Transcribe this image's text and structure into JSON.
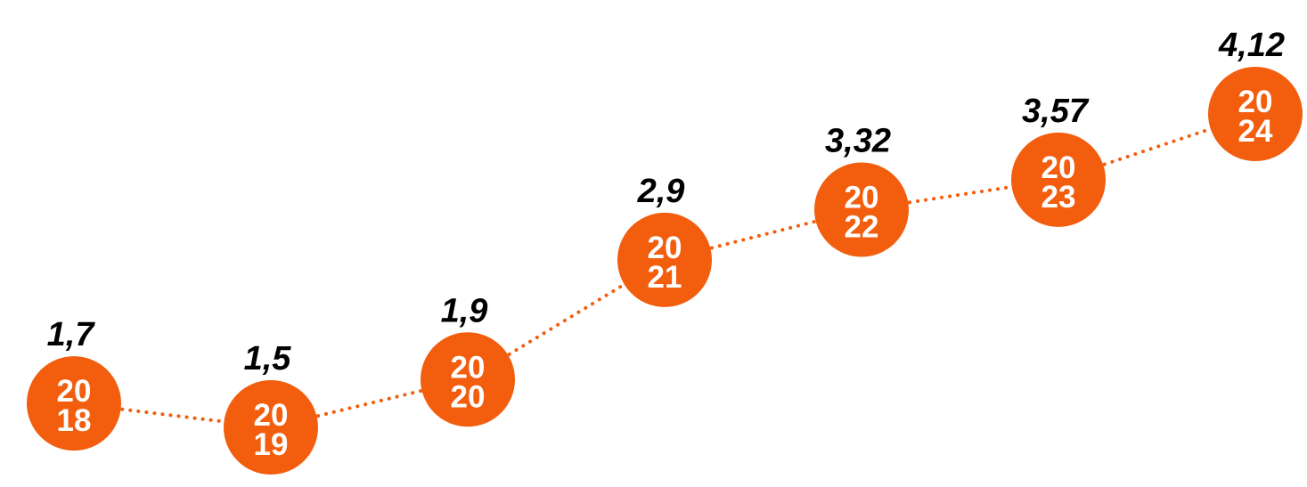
{
  "chart_data": {
    "type": "line",
    "x": [
      "2018",
      "2019",
      "2020",
      "2021",
      "2022",
      "2023",
      "2024"
    ],
    "values": [
      1.7,
      1.5,
      1.9,
      2.9,
      3.32,
      3.57,
      4.12
    ],
    "value_labels": [
      "1,7",
      "1,5",
      "1,9",
      "2,9",
      "3,32",
      "3,57",
      "4,12"
    ],
    "year_labels": [
      [
        "20",
        "18"
      ],
      [
        "20",
        "19"
      ],
      [
        "20",
        "20"
      ],
      [
        "20",
        "21"
      ],
      [
        "20",
        "22"
      ],
      [
        "20",
        "23"
      ],
      [
        "20",
        "24"
      ]
    ],
    "title": "",
    "xlabel": "",
    "ylabel": "",
    "grid": false,
    "line_style": "dotted",
    "colors": {
      "marker": "#f25e0e",
      "line": "#f25e0e",
      "year_text": "#ffffff",
      "value_text": "#000000"
    }
  }
}
